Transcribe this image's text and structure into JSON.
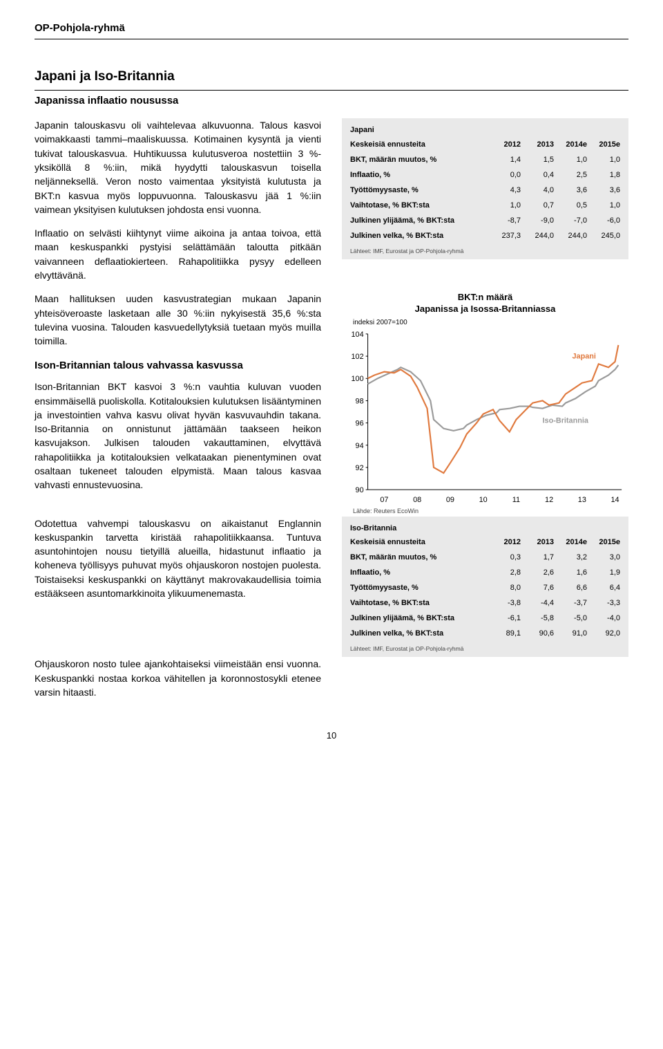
{
  "brand": "OP-Pohjola-ryhmä",
  "section_title": "Japani ja Iso-Britannia",
  "section_sub": "Japanissa inflaatio nousussa",
  "p1": "Japanin talouskasvu oli vaihtelevaa alkuvuonna. Talous kasvoi voimakkaasti tammi–maaliskuussa. Kotimainen kysyntä ja vienti tukivat talouskasvua. Huhtikuussa kulutusveroa nostettiin 3 %-yksiköllä 8 %:iin, mikä hyydytti talouskasvun toisella neljänneksellä. Veron nosto vaimentaa yksityistä kulutusta ja BKT:n kasvua myös loppuvuonna. Talouskasvu jää 1 %:iin vaimean yksityisen kulutuksen johdosta ensi vuonna.",
  "p2": "Inflaatio on selvästi kiihtynyt viime aikoina ja antaa toivoa, että maan keskuspankki pystyisi selättämään taloutta pitkään vaivanneen deflaatiokierteen. Rahapolitiikka pysyy edelleen elvyttävänä.",
  "p3": "Maan hallituksen uuden kasvustrategian mukaan Japanin yhteisöveroaste lasketaan alle 30 %:iin nykyisestä 35,6 %:sta tulevina vuosina. Talouden kasvuedellytyksiä tuetaan myös muilla toimilla.",
  "uk_head": "Ison-Britannian talous vahvassa kasvussa",
  "p4": "Ison-Britannian BKT kasvoi 3 %:n vauhtia kuluvan vuoden ensimmäisellä puoliskolla. Kotitalouksien kulutuksen lisääntyminen ja investointien vahva kasvu olivat hyvän kasvuvauhdin takana. Iso-Britannia on onnistunut jättämään taakseen heikon kasvujakson. Julkisen talouden vakauttaminen, elvyttävä rahapolitiikka ja kotitalouksien velkataakan pienentyminen ovat osaltaan tukeneet talouden elpymistä. Maan talous kasvaa vahvasti ennustevuosina.",
  "p5": "Odotettua vahvempi talouskasvu on aikaistanut Englannin keskuspankin tarvetta kiristää rahapolitiikkaansa. Tuntuva asuntohintojen nousu tietyillä alueilla, hidastunut inflaatio ja koheneva työllisyys puhuvat myös ohjauskoron nostojen puolesta. Toistaiseksi keskuspankki on käyttänyt makrovakaudellisia toimia estääkseen asuntomarkkinoita ylikuumenemasta.",
  "p6": "Ohjauskoron nosto tulee ajankohtaiseksi viimeistään ensi vuonna. Keskuspankki nostaa korkoa vähitellen ja koronnostosykli etenee varsin hitaasti.",
  "page_number": "10",
  "japan_table": {
    "name": "Japani",
    "head_lbl": "Keskeisiä ennusteita",
    "years": [
      "2012",
      "2013",
      "2014e",
      "2015e"
    ],
    "rows": [
      {
        "lbl": "BKT, määrän muutos, %",
        "vals": [
          "1,4",
          "1,5",
          "1,0",
          "1,0"
        ]
      },
      {
        "lbl": "Inflaatio, %",
        "vals": [
          "0,0",
          "0,4",
          "2,5",
          "1,8"
        ]
      },
      {
        "lbl": "Työttömyysaste, %",
        "vals": [
          "4,3",
          "4,0",
          "3,6",
          "3,6"
        ]
      },
      {
        "lbl": "Vaihtotase, % BKT:sta",
        "vals": [
          "1,0",
          "0,7",
          "0,5",
          "1,0"
        ]
      },
      {
        "lbl": "Julkinen ylijäämä, % BKT:sta",
        "vals": [
          "-8,7",
          "-9,0",
          "-7,0",
          "-6,0"
        ]
      },
      {
        "lbl": "Julkinen velka, % BKT:sta",
        "vals": [
          "237,3",
          "244,0",
          "244,0",
          "245,0"
        ]
      }
    ],
    "src": "Lähteet: IMF, Eurostat ja OP-Pohjola-ryhmä"
  },
  "uk_table": {
    "name": "Iso-Britannia",
    "head_lbl": "Keskeisiä ennusteita",
    "years": [
      "2012",
      "2013",
      "2014e",
      "2015e"
    ],
    "rows": [
      {
        "lbl": "BKT, määrän muutos, %",
        "vals": [
          "0,3",
          "1,7",
          "3,2",
          "3,0"
        ]
      },
      {
        "lbl": "Inflaatio, %",
        "vals": [
          "2,8",
          "2,6",
          "1,6",
          "1,9"
        ]
      },
      {
        "lbl": "Työttömyysaste, %",
        "vals": [
          "8,0",
          "7,6",
          "6,6",
          "6,4"
        ]
      },
      {
        "lbl": "Vaihtotase, % BKT:sta",
        "vals": [
          "-3,8",
          "-4,4",
          "-3,7",
          "-3,3"
        ]
      },
      {
        "lbl": "Julkinen ylijäämä, % BKT:sta",
        "vals": [
          "-6,1",
          "-5,8",
          "-5,0",
          "-4,0"
        ]
      },
      {
        "lbl": "Julkinen velka, % BKT:sta",
        "vals": [
          "89,1",
          "90,6",
          "91,0",
          "92,0"
        ]
      }
    ],
    "src": "Lähteet: IMF, Eurostat ja OP-Pohjola-ryhmä"
  },
  "chart": {
    "title1": "BKT:n määrä",
    "title2": "Japanissa ja Isossa-Britanniassa",
    "sub": "indeksi 2007=100",
    "src": "Lähde: Reuters EcoWin",
    "y_ticks": [
      104,
      102,
      100,
      98,
      96,
      94,
      92,
      90
    ],
    "x_ticks": [
      "07",
      "08",
      "09",
      "10",
      "11",
      "12",
      "13",
      "14"
    ],
    "label_japan": "Japani",
    "label_uk": "Iso-Britannia",
    "color_japan": "#e07a3f",
    "color_uk": "#9a9a9a",
    "bg": "#ffffff",
    "xlim": [
      2007,
      2014.7
    ],
    "ylim": [
      90,
      104
    ],
    "japan_series": [
      [
        2007.0,
        100.0
      ],
      [
        2007.2,
        100.3
      ],
      [
        2007.5,
        100.6
      ],
      [
        2007.8,
        100.5
      ],
      [
        2008.0,
        100.8
      ],
      [
        2008.3,
        100.2
      ],
      [
        2008.5,
        99.2
      ],
      [
        2008.8,
        97.3
      ],
      [
        2009.0,
        92.0
      ],
      [
        2009.3,
        91.5
      ],
      [
        2009.5,
        92.4
      ],
      [
        2009.8,
        93.8
      ],
      [
        2010.0,
        95.0
      ],
      [
        2010.3,
        96.0
      ],
      [
        2010.5,
        96.8
      ],
      [
        2010.8,
        97.2
      ],
      [
        2011.0,
        96.2
      ],
      [
        2011.3,
        95.2
      ],
      [
        2011.5,
        96.3
      ],
      [
        2011.8,
        97.2
      ],
      [
        2012.0,
        97.8
      ],
      [
        2012.3,
        98.0
      ],
      [
        2012.5,
        97.6
      ],
      [
        2012.8,
        97.8
      ],
      [
        2013.0,
        98.6
      ],
      [
        2013.3,
        99.2
      ],
      [
        2013.5,
        99.6
      ],
      [
        2013.8,
        99.8
      ],
      [
        2014.0,
        101.3
      ],
      [
        2014.3,
        101.0
      ],
      [
        2014.5,
        101.5
      ],
      [
        2014.6,
        103.0
      ]
    ],
    "uk_series": [
      [
        2007.0,
        99.5
      ],
      [
        2007.3,
        100.0
      ],
      [
        2007.6,
        100.4
      ],
      [
        2007.9,
        100.8
      ],
      [
        2008.0,
        101.0
      ],
      [
        2008.3,
        100.6
      ],
      [
        2008.6,
        99.8
      ],
      [
        2008.9,
        98.0
      ],
      [
        2009.0,
        96.3
      ],
      [
        2009.3,
        95.5
      ],
      [
        2009.6,
        95.3
      ],
      [
        2009.9,
        95.5
      ],
      [
        2010.0,
        95.8
      ],
      [
        2010.3,
        96.3
      ],
      [
        2010.6,
        96.7
      ],
      [
        2010.9,
        96.9
      ],
      [
        2011.0,
        97.2
      ],
      [
        2011.3,
        97.3
      ],
      [
        2011.6,
        97.5
      ],
      [
        2011.9,
        97.5
      ],
      [
        2012.0,
        97.4
      ],
      [
        2012.3,
        97.3
      ],
      [
        2012.6,
        97.6
      ],
      [
        2012.9,
        97.5
      ],
      [
        2013.0,
        97.8
      ],
      [
        2013.3,
        98.2
      ],
      [
        2013.6,
        98.8
      ],
      [
        2013.9,
        99.3
      ],
      [
        2014.0,
        99.8
      ],
      [
        2014.3,
        100.3
      ],
      [
        2014.5,
        100.8
      ],
      [
        2014.6,
        101.2
      ]
    ]
  }
}
